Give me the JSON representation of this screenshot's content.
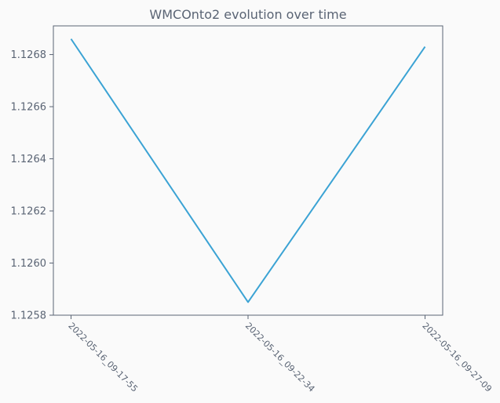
{
  "chart_data": {
    "type": "line",
    "title": "WMCOnto2 evolution over time",
    "xlabel": "",
    "ylabel": "",
    "categories": [
      "2022-05-16_09-17-55",
      "2022-05-16_09-22-34",
      "2022-05-16_09-27-09"
    ],
    "series": [
      {
        "values": [
          1.12686,
          1.12585,
          1.12683
        ],
        "color": "#3ba3d4"
      }
    ],
    "ylim": [
      1.1258,
      1.12691
    ],
    "yticks": [
      1.1258,
      1.126,
      1.1262,
      1.1264,
      1.1266,
      1.1268
    ],
    "ytick_labels": [
      "1.1258",
      "1.1260",
      "1.1262",
      "1.1264",
      "1.1266",
      "1.1268"
    ],
    "grid": false,
    "legend": "none"
  }
}
